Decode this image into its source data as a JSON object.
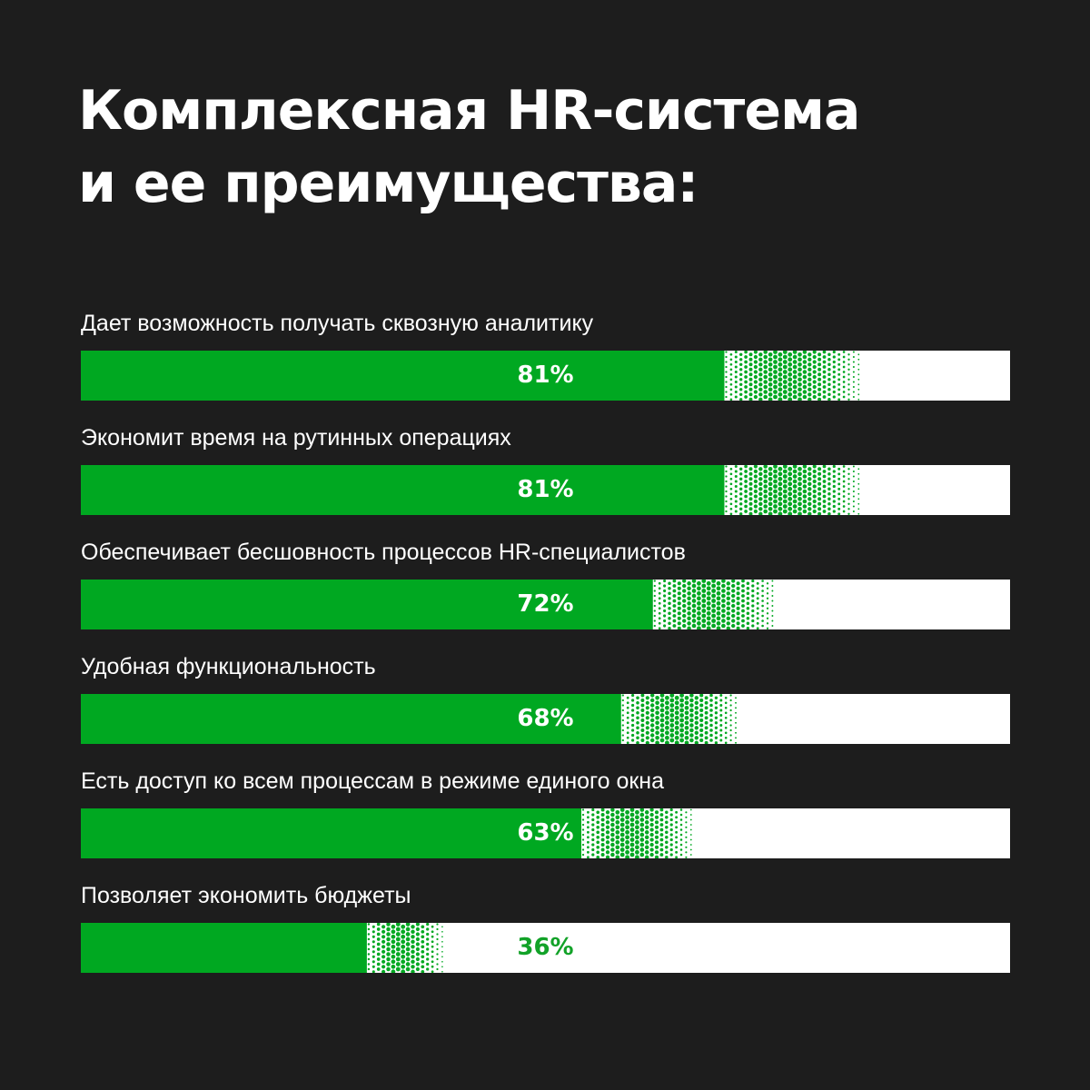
{
  "title": {
    "line1": "Комплексная HR-система",
    "line2": "и ее преимущества:"
  },
  "colors": {
    "background": "#1d1d1d",
    "bar_fill": "#00a821",
    "bar_track": "#ffffff",
    "text": "#ffffff",
    "value_on_light": "#12a228"
  },
  "chart_data": {
    "type": "bar",
    "orientation": "horizontal",
    "categories": [
      "Дает возможность получать сквозную аналитику",
      "Экономит время на рутинных операциях",
      "Обеспечивает бесшовность процессов HR-специалистов",
      "Удобная функциональность",
      "Есть доступ ко всем процессам в режиме единого окна",
      "Позволяет экономить бюджеты"
    ],
    "values": [
      81,
      81,
      72,
      68,
      63,
      36
    ],
    "value_labels": [
      "81%",
      "81%",
      "72%",
      "68%",
      "63%",
      "36%"
    ],
    "unit": "%",
    "xlim": [
      0,
      100
    ],
    "grid": false,
    "legend": "none"
  }
}
